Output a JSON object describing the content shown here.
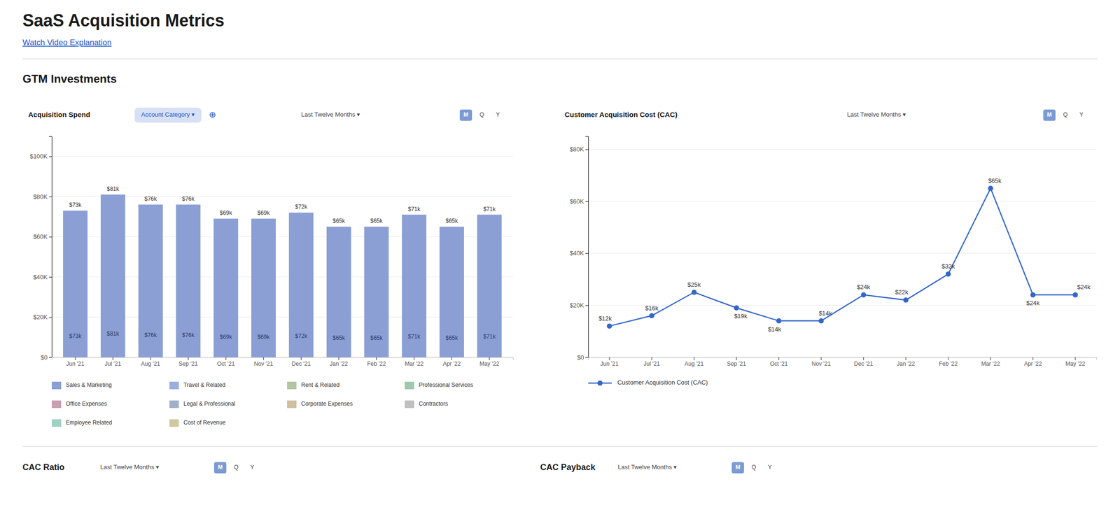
{
  "title": "SaaS Acquisition Metrics",
  "subtitle": "Watch Video Explanation",
  "section_title": "GTM Investments",
  "chart_data": [
    {
      "type": "bar",
      "title": "Acquisition Spend",
      "filter_label": "Account Category  ▾",
      "filter_icon": "⊕",
      "time_label": "Last Twelve Months  ▾",
      "period_options": [
        "M",
        "Q",
        "Y"
      ],
      "categories": [
        "Jun '21",
        "Jul '21",
        "Aug '21",
        "Sep '21",
        "Oct '21",
        "Nov '21",
        "Dec '21",
        "Jan '22",
        "Feb '22",
        "Mar '22",
        "Apr '22",
        "May '22"
      ],
      "values": [
        73000,
        81000,
        76000,
        76000,
        69000,
        69000,
        72000,
        65000,
        65000,
        71000,
        65000,
        71000
      ],
      "value_labels": [
        "$73k",
        "$81k",
        "$76k",
        "$76k",
        "$69k",
        "$69k",
        "$72k",
        "$65k",
        "$65k",
        "$71k",
        "$65k",
        "$71k"
      ],
      "inner_labels": [
        "$73k",
        "$81k",
        "$76k",
        "$76k",
        "$69k",
        "$69k",
        "$72k",
        "$65k",
        "$65k",
        "$71k",
        "$65k",
        "$71k"
      ],
      "color": "#8b9fd4",
      "ylim": [
        0,
        110000
      ],
      "yticks": [
        {
          "value": 0,
          "label": "$0"
        },
        {
          "value": 20000,
          "label": "$20K"
        },
        {
          "value": 40000,
          "label": "$40K"
        },
        {
          "value": 60000,
          "label": "$60K"
        },
        {
          "value": 80000,
          "label": "$80K"
        },
        {
          "value": 100000,
          "label": "$100K"
        }
      ],
      "grid": true,
      "data_labels": true,
      "legend_items": [
        {
          "label": "Sales & Marketing",
          "color": "#8b9fd4"
        },
        {
          "label": "Travel & Related",
          "color": "#9bb0e0"
        },
        {
          "label": "Rent & Related",
          "color": "#b3c6a0"
        },
        {
          "label": "Professional Services",
          "color": "#a0c8b0"
        },
        {
          "label": "Office Expenses",
          "color": "#c8a0b0"
        },
        {
          "label": "Legal & Professional",
          "color": "#a0b0c8"
        },
        {
          "label": "Corporate Expenses",
          "color": "#d0c0a0"
        },
        {
          "label": "Contractors",
          "color": "#c0c0c0"
        },
        {
          "label": "Employee Related",
          "color": "#a0d0c0"
        },
        {
          "label": "Cost of Revenue",
          "color": "#d0c8a0"
        }
      ]
    },
    {
      "type": "line",
      "title": "Customer Acquisition Cost (CAC)",
      "time_label": "Last Twelve Months  ▾",
      "period_options": [
        "M",
        "Q",
        "Y"
      ],
      "categories": [
        "Jun '21",
        "Jul '21",
        "Aug '21",
        "Sep '21",
        "Oct '21",
        "Nov '21",
        "Dec '21",
        "Jan '22",
        "Feb '22",
        "Mar '22",
        "Apr '22",
        "May '22"
      ],
      "series": [
        {
          "name": "Customer Acquisition Cost (CAC)",
          "color": "#3366cc",
          "marker": "circle",
          "values": [
            12000,
            16000,
            25000,
            19000,
            14000,
            14000,
            24000,
            22000,
            32000,
            65000,
            24000,
            24000
          ],
          "value_labels": [
            "$12k",
            "$16k",
            "$25k",
            "$19k",
            "$14k",
            "$14k",
            "$24k",
            "$22k",
            "$32k",
            "$65k",
            "$24k",
            "$24k"
          ]
        }
      ],
      "ylim": [
        0,
        85000
      ],
      "yticks": [
        {
          "value": 0,
          "label": "$0"
        },
        {
          "value": 20000,
          "label": "$20K"
        },
        {
          "value": 40000,
          "label": "$40K"
        },
        {
          "value": 60000,
          "label": "$60K"
        },
        {
          "value": 80000,
          "label": "$80K"
        }
      ],
      "grid": true,
      "data_labels": true,
      "legend": "bottom"
    }
  ],
  "panels": [
    {
      "title": "CAC Ratio",
      "time_label": "Last Twelve Months  ▾",
      "period_options": [
        "M",
        "Q",
        "Y"
      ]
    },
    {
      "title": "CAC Payback",
      "time_label": "Last Twelve Months  ▾",
      "period_options": [
        "M",
        "Q",
        "Y"
      ]
    }
  ]
}
